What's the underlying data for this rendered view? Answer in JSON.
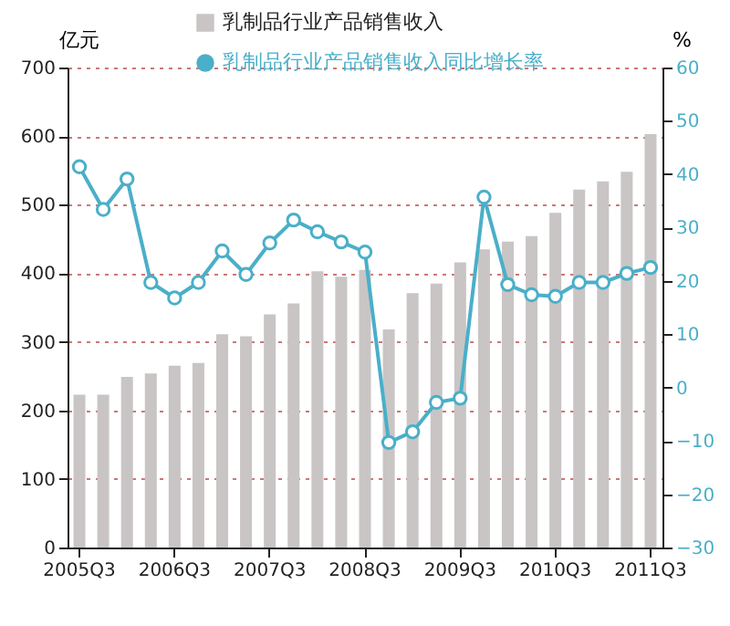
{
  "chart_data": {
    "type": "bar",
    "ylabel": "亿元",
    "y2label": "%",
    "categories": [
      "2005Q3",
      null,
      null,
      null,
      "2006Q3",
      null,
      null,
      null,
      "2007Q3",
      null,
      null,
      null,
      "2008Q3",
      null,
      null,
      null,
      "2009Q3",
      null,
      null,
      null,
      "2010Q3",
      null,
      null,
      null,
      "2011Q3"
    ],
    "series": [
      {
        "name": "乳制品行业产品销售收入",
        "color": "#c9c5c5",
        "values": [
          223,
          223,
          249,
          254,
          265,
          269,
          311,
          308,
          340,
          356,
          403,
          395,
          405,
          318,
          371,
          385,
          416,
          435,
          446,
          454,
          488,
          522,
          534,
          548,
          603
        ]
      },
      {
        "name": "乳制品行业产品销售收入同比增长率",
        "type": "line",
        "axis": "y2",
        "color": "#4aafc8",
        "marker": "circle",
        "values": [
          41.4,
          33.4,
          39.1,
          19.7,
          16.8,
          19.7,
          25.6,
          21.2,
          27.1,
          31.4,
          29.2,
          27.3,
          25.4,
          -10.3,
          -8.3,
          -2.8,
          -2.0,
          35.7,
          19.3,
          17.4,
          17.1,
          19.7,
          19.7,
          21.4,
          22.5
        ]
      }
    ],
    "ylim": [
      0,
      700
    ],
    "yticks": [
      0,
      100,
      200,
      300,
      400,
      500,
      600,
      700
    ],
    "y2lim": [
      -30,
      60
    ],
    "y2ticks": [
      -30,
      -20,
      -10,
      0,
      10,
      20,
      30,
      40,
      50,
      60
    ],
    "grid": "y",
    "legend": "top"
  }
}
